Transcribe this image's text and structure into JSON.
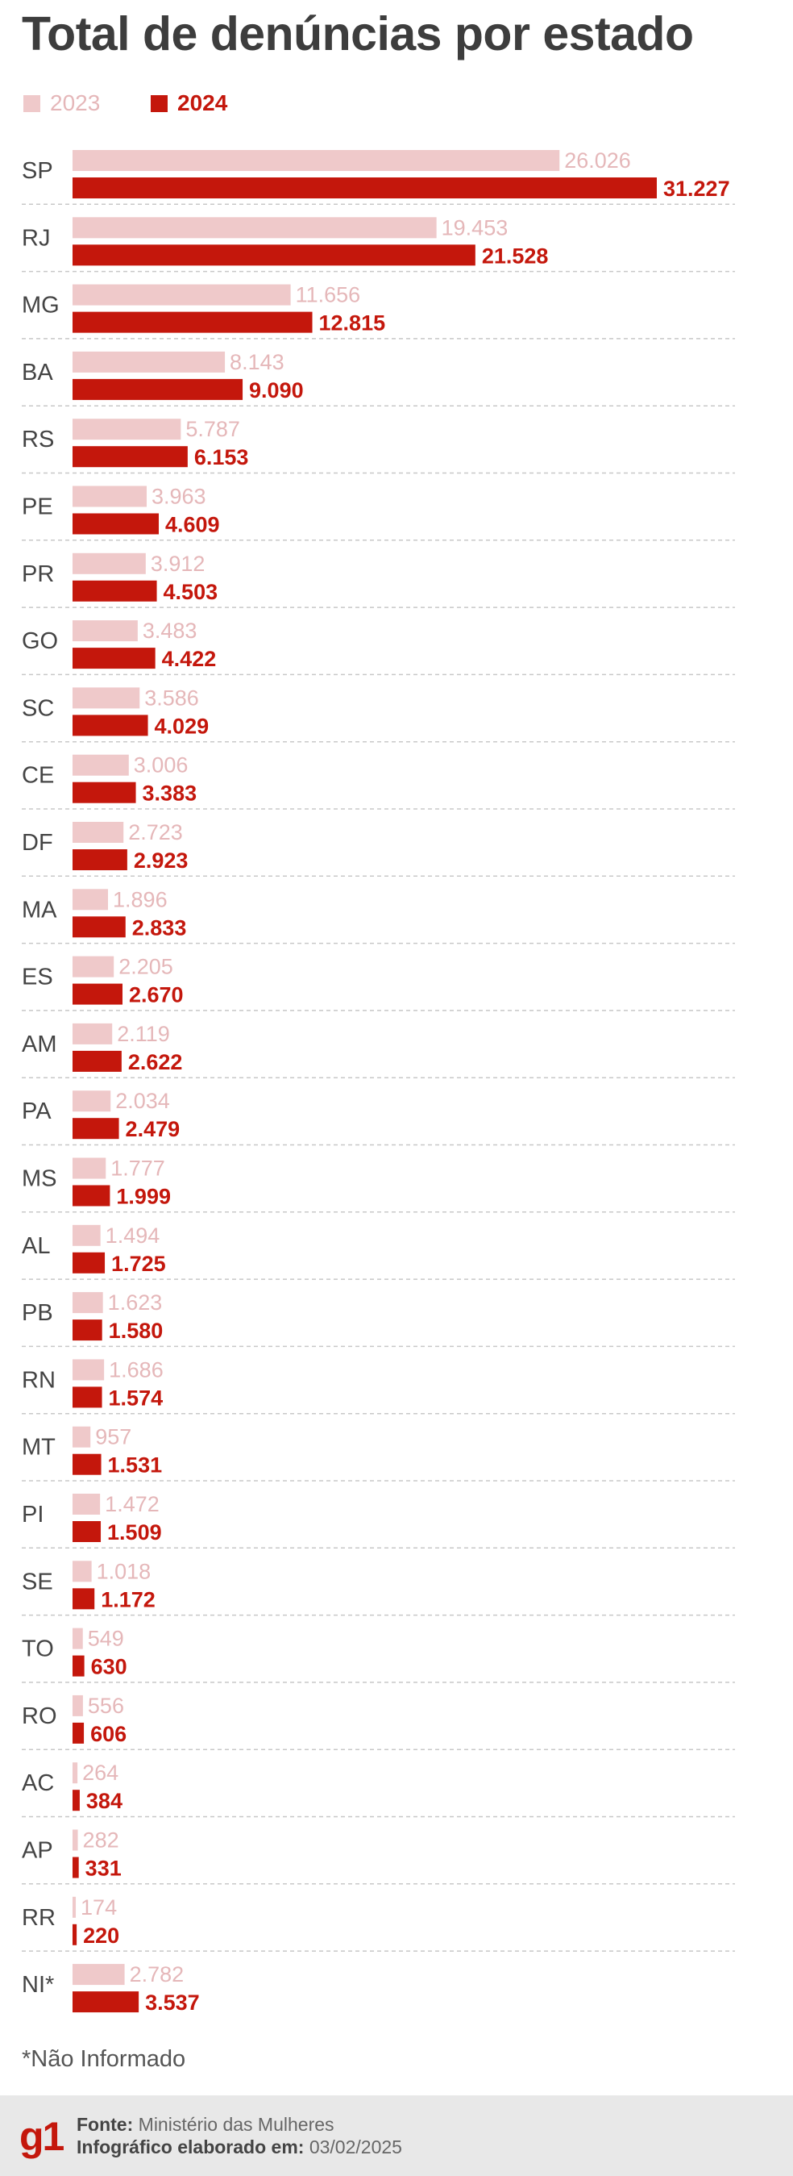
{
  "title": "Total de denúncias por estado",
  "colors": {
    "series_2023": "#efc9ca",
    "series_2024": "#c4170c",
    "label_2023": "#e5b7b9",
    "label_2024": "#c4170c",
    "category_text": "#444444",
    "divider": "#c8c8c8"
  },
  "chart_data": {
    "type": "bar",
    "orientation": "horizontal",
    "title": "Total de denúncias por estado",
    "categories": [
      "SP",
      "RJ",
      "MG",
      "BA",
      "RS",
      "PE",
      "PR",
      "GO",
      "SC",
      "CE",
      "DF",
      "MA",
      "ES",
      "AM",
      "PA",
      "MS",
      "AL",
      "PB",
      "RN",
      "MT",
      "PI",
      "SE",
      "TO",
      "RO",
      "AC",
      "AP",
      "RR",
      "NI*"
    ],
    "series": [
      {
        "name": "2023",
        "labels": [
          "26.026",
          "19.453",
          "11.656",
          "8.143",
          "5.787",
          "3.963",
          "3.912",
          "3.483",
          "3.586",
          "3.006",
          "2.723",
          "1.896",
          "2.205",
          "2.119",
          "2.034",
          "1.777",
          "1.494",
          "1.623",
          "1.686",
          "957",
          "1.472",
          "1.018",
          "549",
          "556",
          "264",
          "282",
          "174",
          "2.782"
        ],
        "values": [
          26026,
          19453,
          11656,
          8143,
          5787,
          3963,
          3912,
          3483,
          3586,
          3006,
          2723,
          1896,
          2205,
          2119,
          2034,
          1777,
          1494,
          1623,
          1686,
          957,
          1472,
          1018,
          549,
          556,
          264,
          282,
          174,
          2782
        ]
      },
      {
        "name": "2024",
        "labels": [
          "31.227",
          "21.528",
          "12.815",
          "9.090",
          "6.153",
          "4.609",
          "4.503",
          "4.422",
          "4.029",
          "3.383",
          "2.923",
          "2.833",
          "2.670",
          "2.622",
          "2.479",
          "1.999",
          "1.725",
          "1.580",
          "1.574",
          "1.531",
          "1.509",
          "1.172",
          "630",
          "606",
          "384",
          "331",
          "220",
          "3.537"
        ],
        "values": [
          31227,
          21528,
          12815,
          9090,
          6153,
          4609,
          4503,
          4422,
          4029,
          3383,
          2923,
          2833,
          2670,
          2622,
          2479,
          1999,
          1725,
          1580,
          1574,
          1531,
          1509,
          1172,
          630,
          606,
          384,
          331,
          220,
          3537
        ]
      }
    ],
    "legend": "top-left",
    "grid": false
  },
  "footnote": "*Não Informado",
  "footer": {
    "logo": "g1",
    "source_label": "Fonte:",
    "source_value": "Ministério das Mulheres",
    "made_label": "Infográfico elaborado em:",
    "made_value": "03/02/2025"
  }
}
